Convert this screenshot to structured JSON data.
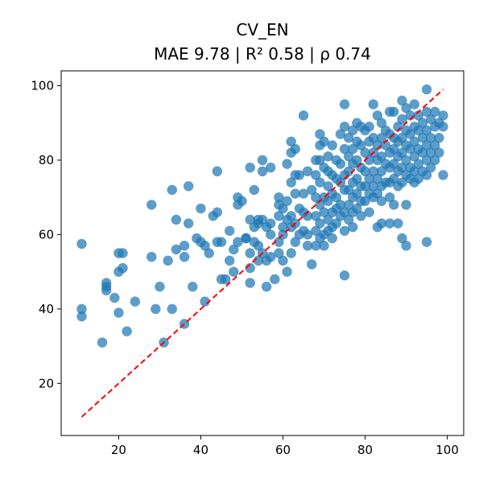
{
  "chart_data": {
    "type": "scatter",
    "title": "CV_EN",
    "subtitle": "MAE 9.78 | R² 0.58 | ρ 0.74",
    "xlabel": "",
    "ylabel": "",
    "xlim": [
      6,
      104
    ],
    "ylim": [
      6,
      104
    ],
    "x_ticks": [
      20,
      40,
      60,
      80,
      100
    ],
    "y_ticks": [
      20,
      40,
      60,
      80,
      100
    ],
    "grid": false,
    "colors": {
      "points": "#1f77b4",
      "reference_line": "#ff0000"
    },
    "reference_line": {
      "style": "dashed",
      "from": [
        11,
        11
      ],
      "to": [
        99,
        99
      ]
    },
    "points": [
      [
        11,
        57.5
      ],
      [
        11,
        40
      ],
      [
        11,
        38
      ],
      [
        16,
        31
      ],
      [
        17,
        47
      ],
      [
        17,
        46
      ],
      [
        17,
        45
      ],
      [
        19,
        43
      ],
      [
        20,
        39
      ],
      [
        20,
        50
      ],
      [
        20,
        55
      ],
      [
        21,
        55
      ],
      [
        21,
        51
      ],
      [
        22,
        34
      ],
      [
        24,
        42
      ],
      [
        28,
        68
      ],
      [
        28,
        54
      ],
      [
        29,
        40
      ],
      [
        30,
        46
      ],
      [
        31,
        31
      ],
      [
        32,
        53
      ],
      [
        33,
        40
      ],
      [
        33,
        72
      ],
      [
        34,
        64
      ],
      [
        34,
        56
      ],
      [
        36,
        36
      ],
      [
        36,
        57
      ],
      [
        36,
        54
      ],
      [
        37,
        73
      ],
      [
        37,
        63
      ],
      [
        38,
        46
      ],
      [
        39,
        59
      ],
      [
        40,
        67
      ],
      [
        40,
        58
      ],
      [
        41,
        57
      ],
      [
        41,
        42
      ],
      [
        42,
        55
      ],
      [
        43,
        65
      ],
      [
        44,
        77
      ],
      [
        44,
        66
      ],
      [
        44,
        58
      ],
      [
        45,
        58
      ],
      [
        45,
        48
      ],
      [
        46,
        48
      ],
      [
        47,
        53
      ],
      [
        47,
        61
      ],
      [
        48,
        56
      ],
      [
        48,
        50
      ],
      [
        49,
        58
      ],
      [
        49,
        70
      ],
      [
        49,
        68
      ],
      [
        50,
        69
      ],
      [
        51,
        59
      ],
      [
        51,
        59
      ],
      [
        52,
        78
      ],
      [
        52,
        64
      ],
      [
        52,
        55
      ],
      [
        52,
        51
      ],
      [
        52,
        47
      ],
      [
        53,
        72
      ],
      [
        53,
        62
      ],
      [
        53,
        58
      ],
      [
        54,
        64
      ],
      [
        54,
        63
      ],
      [
        54,
        57
      ],
      [
        54,
        53
      ],
      [
        55,
        80
      ],
      [
        55,
        77
      ],
      [
        55,
        64
      ],
      [
        55,
        55
      ],
      [
        56,
        62
      ],
      [
        56,
        53
      ],
      [
        56,
        46
      ],
      [
        57,
        78
      ],
      [
        57,
        63
      ],
      [
        57,
        60
      ],
      [
        57,
        54
      ],
      [
        58,
        48
      ],
      [
        59,
        70
      ],
      [
        59,
        68
      ],
      [
        59,
        65
      ],
      [
        59,
        58
      ],
      [
        59,
        55
      ],
      [
        60,
        67
      ],
      [
        60,
        62
      ],
      [
        60,
        60
      ],
      [
        60,
        53
      ],
      [
        61,
        79
      ],
      [
        61,
        69
      ],
      [
        61,
        64
      ],
      [
        61,
        50
      ],
      [
        62,
        85
      ],
      [
        62,
        82
      ],
      [
        62,
        74
      ],
      [
        62,
        65
      ],
      [
        62,
        62
      ],
      [
        62,
        55
      ],
      [
        63,
        83
      ],
      [
        63,
        76
      ],
      [
        63,
        71
      ],
      [
        63,
        63
      ],
      [
        63,
        58
      ],
      [
        64,
        76
      ],
      [
        64,
        67
      ],
      [
        64,
        60
      ],
      [
        65,
        92
      ],
      [
        65,
        71
      ],
      [
        65,
        66
      ],
      [
        65,
        61
      ],
      [
        66,
        77
      ],
      [
        66,
        65
      ],
      [
        66,
        60
      ],
      [
        66,
        57
      ],
      [
        67,
        72
      ],
      [
        67,
        52
      ],
      [
        68,
        80
      ],
      [
        68,
        76
      ],
      [
        68,
        70
      ],
      [
        68,
        65
      ],
      [
        68,
        61
      ],
      [
        68,
        57
      ],
      [
        69,
        87
      ],
      [
        69,
        84
      ],
      [
        69,
        80
      ],
      [
        69,
        74
      ],
      [
        69,
        68
      ],
      [
        69,
        63
      ],
      [
        69,
        59
      ],
      [
        70,
        85
      ],
      [
        70,
        78
      ],
      [
        70,
        70
      ],
      [
        70,
        66
      ],
      [
        70,
        60
      ],
      [
        70,
        57
      ],
      [
        71,
        81
      ],
      [
        71,
        77
      ],
      [
        71,
        73
      ],
      [
        71,
        69
      ],
      [
        71,
        64
      ],
      [
        71,
        61
      ],
      [
        72,
        84
      ],
      [
        72,
        76
      ],
      [
        72,
        71
      ],
      [
        72,
        66
      ],
      [
        72,
        62
      ],
      [
        72,
        59
      ],
      [
        73,
        80
      ],
      [
        73,
        75
      ],
      [
        73,
        70
      ],
      [
        73,
        67
      ],
      [
        73,
        63
      ],
      [
        74,
        87
      ],
      [
        74,
        79
      ],
      [
        74,
        74
      ],
      [
        74,
        68
      ],
      [
        74,
        65
      ],
      [
        75,
        95
      ],
      [
        75,
        89
      ],
      [
        75,
        83
      ],
      [
        75,
        76
      ],
      [
        75,
        72
      ],
      [
        75,
        66
      ],
      [
        75,
        61
      ],
      [
        75,
        49
      ],
      [
        76,
        86
      ],
      [
        76,
        81
      ],
      [
        76,
        77
      ],
      [
        76,
        72
      ],
      [
        76,
        68
      ],
      [
        76,
        64
      ],
      [
        77,
        88
      ],
      [
        77,
        83
      ],
      [
        77,
        79
      ],
      [
        77,
        74
      ],
      [
        77,
        70
      ],
      [
        77,
        66
      ],
      [
        77,
        62
      ],
      [
        78,
        90
      ],
      [
        78,
        85
      ],
      [
        78,
        80
      ],
      [
        78,
        75
      ],
      [
        78,
        71
      ],
      [
        78,
        67
      ],
      [
        79,
        89
      ],
      [
        79,
        84
      ],
      [
        79,
        78
      ],
      [
        79,
        73
      ],
      [
        79,
        69
      ],
      [
        79,
        65
      ],
      [
        80,
        88
      ],
      [
        80,
        82
      ],
      [
        80,
        77
      ],
      [
        80,
        73
      ],
      [
        80,
        69
      ],
      [
        81,
        89
      ],
      [
        81,
        85
      ],
      [
        81,
        80
      ],
      [
        81,
        75
      ],
      [
        81,
        71
      ],
      [
        81,
        66
      ],
      [
        82,
        95
      ],
      [
        82,
        86
      ],
      [
        82,
        82
      ],
      [
        82,
        77
      ],
      [
        82,
        73
      ],
      [
        82,
        70
      ],
      [
        83,
        92
      ],
      [
        83,
        84
      ],
      [
        83,
        80
      ],
      [
        83,
        75
      ],
      [
        83,
        71
      ],
      [
        83,
        62
      ],
      [
        84,
        90
      ],
      [
        84,
        86
      ],
      [
        84,
        81
      ],
      [
        84,
        77
      ],
      [
        84,
        73
      ],
      [
        84,
        69
      ],
      [
        84,
        63
      ],
      [
        85,
        88
      ],
      [
        85,
        84
      ],
      [
        85,
        79
      ],
      [
        85,
        74
      ],
      [
        86,
        93
      ],
      [
        86,
        87
      ],
      [
        86,
        82
      ],
      [
        86,
        78
      ],
      [
        86,
        74
      ],
      [
        86,
        70
      ],
      [
        86,
        63
      ],
      [
        87,
        93
      ],
      [
        87,
        86
      ],
      [
        87,
        83
      ],
      [
        87,
        79
      ],
      [
        87,
        75
      ],
      [
        87,
        68
      ],
      [
        88,
        89
      ],
      [
        88,
        85
      ],
      [
        88,
        81
      ],
      [
        88,
        77
      ],
      [
        88,
        73
      ],
      [
        88,
        63
      ],
      [
        89,
        96
      ],
      [
        89,
        91
      ],
      [
        89,
        86
      ],
      [
        89,
        82
      ],
      [
        89,
        78
      ],
      [
        89,
        74
      ],
      [
        89,
        59
      ],
      [
        90,
        94
      ],
      [
        90,
        88
      ],
      [
        90,
        84
      ],
      [
        90,
        80
      ],
      [
        90,
        76
      ],
      [
        90,
        68
      ],
      [
        90,
        57
      ],
      [
        91,
        92
      ],
      [
        91,
        87
      ],
      [
        91,
        83
      ],
      [
        91,
        78
      ],
      [
        91,
        75
      ],
      [
        92,
        95
      ],
      [
        92,
        89
      ],
      [
        92,
        85
      ],
      [
        92,
        81
      ],
      [
        92,
        77
      ],
      [
        92,
        74
      ],
      [
        93,
        92
      ],
      [
        93,
        88
      ],
      [
        93,
        83
      ],
      [
        93,
        79
      ],
      [
        93,
        75
      ],
      [
        94,
        90
      ],
      [
        94,
        86
      ],
      [
        94,
        82
      ],
      [
        94,
        77
      ],
      [
        95,
        99
      ],
      [
        95,
        93
      ],
      [
        95,
        88
      ],
      [
        95,
        84
      ],
      [
        95,
        80
      ],
      [
        95,
        76
      ],
      [
        95,
        58
      ],
      [
        96,
        91
      ],
      [
        96,
        86
      ],
      [
        96,
        82
      ],
      [
        96,
        78
      ],
      [
        97,
        93
      ],
      [
        97,
        89
      ],
      [
        97,
        84
      ],
      [
        97,
        80
      ],
      [
        98,
        90
      ],
      [
        98,
        86
      ],
      [
        98,
        82
      ],
      [
        99,
        92
      ],
      [
        99,
        89
      ],
      [
        99,
        76
      ]
    ]
  }
}
